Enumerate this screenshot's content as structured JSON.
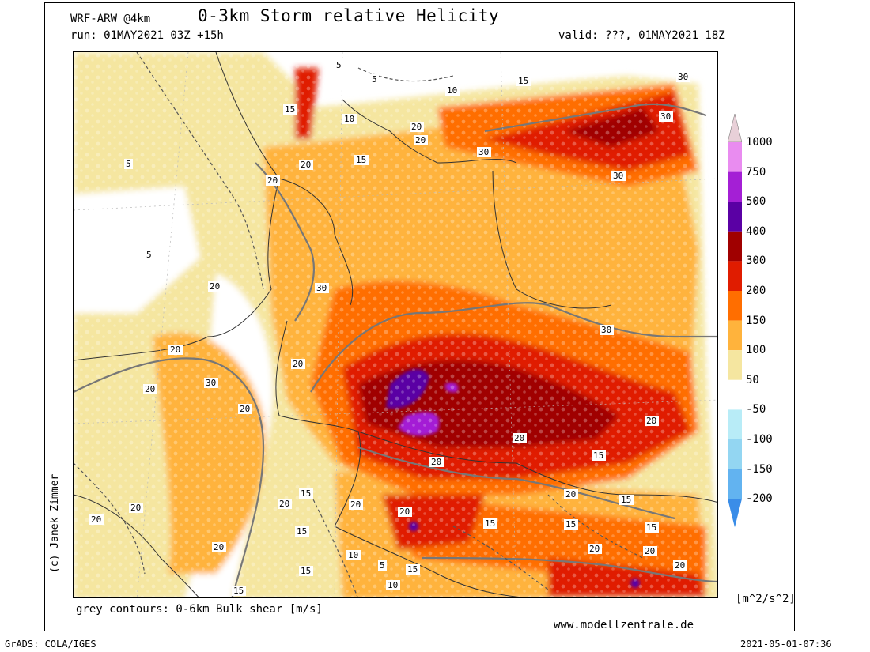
{
  "header": {
    "model": "WRF-ARW @4km",
    "title": "0-3km Storm relative Helicity",
    "run": "run: 01MAY2021 03Z +15h",
    "valid": "valid: ???, 01MAY2021 18Z"
  },
  "credit": "(c) Janek Zimmer",
  "footer": {
    "contours": "grey contours: 0-6km Bulk shear [m/s]",
    "website": "www.modellzentrale.de",
    "software": "GrADS: COLA/IGES",
    "timestamp": "2021-05-01-07:36"
  },
  "legend": {
    "units": "[m^2/s^2]",
    "levels": [
      {
        "label": "1000",
        "color": "#e8d0d8"
      },
      {
        "label": "750",
        "color": "#e98cf0"
      },
      {
        "label": "500",
        "color": "#a41fd5"
      },
      {
        "label": "400",
        "color": "#5a00a4"
      },
      {
        "label": "300",
        "color": "#a00000"
      },
      {
        "label": "200",
        "color": "#e01c00"
      },
      {
        "label": "150",
        "color": "#ff6e00"
      },
      {
        "label": "100",
        "color": "#ffb33c"
      },
      {
        "label": "50",
        "color": "#f5e6a0"
      },
      {
        "label": "-50",
        "color": "#ffffff"
      },
      {
        "label": "-100",
        "color": "#b8ecf7"
      },
      {
        "label": "-150",
        "color": "#93d6f2"
      },
      {
        "label": "-200",
        "color": "#62b3f0"
      }
    ],
    "bottom_color": "#3a8de8"
  },
  "contour_labels": [
    "5",
    "5",
    "10",
    "15",
    "20",
    "15",
    "10",
    "20",
    "20",
    "15",
    "5",
    "30",
    "30",
    "20",
    "30",
    "5",
    "20",
    "30",
    "20",
    "20",
    "30",
    "20",
    "20",
    "30",
    "20",
    "20",
    "20",
    "15",
    "15",
    "20",
    "20",
    "20",
    "15",
    "15",
    "20",
    "15",
    "15",
    "20",
    "20",
    "20",
    "15",
    "20",
    "10",
    "5",
    "15",
    "10",
    "15",
    "15",
    "20",
    "20",
    "30"
  ]
}
